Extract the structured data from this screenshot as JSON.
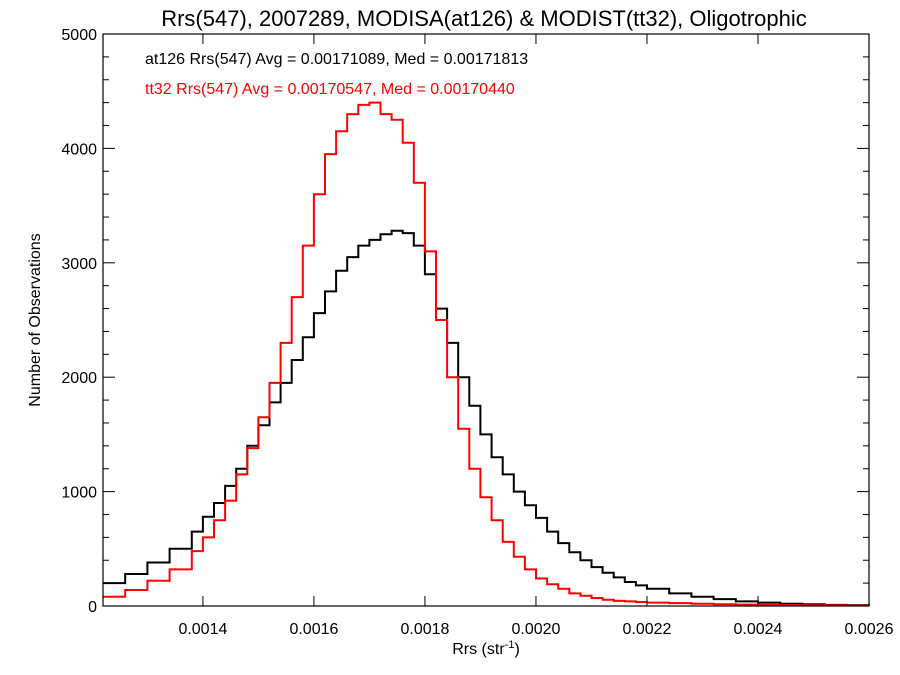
{
  "chart_data": {
    "type": "line",
    "step": true,
    "title": "Rrs(547), 2007289, MODISA(at126) & MODIST(tt32), Oligotrophic",
    "xlabel_main": "Rrs (str",
    "xlabel_sup": "-1",
    "xlabel_close": ")",
    "ylabel": "Number of Observations",
    "xlim": [
      0.00122,
      0.0026
    ],
    "ylim": [
      0,
      5000
    ],
    "xticks": [
      0.0014,
      0.0016,
      0.0018,
      0.002,
      0.0022,
      0.0024,
      0.0026
    ],
    "xtick_labels": [
      "0.0014",
      "0.0016",
      "0.0018",
      "0.0020",
      "0.0022",
      "0.0024",
      "0.0026"
    ],
    "yticks": [
      0,
      1000,
      2000,
      3000,
      4000,
      5000
    ],
    "ytick_labels": [
      "0",
      "1000",
      "2000",
      "3000",
      "4000",
      "5000"
    ],
    "grid": false,
    "annotations": [
      {
        "text": "at126 Rrs(547) Avg = 0.00171089, Med = 0.00171813",
        "color": "#000000"
      },
      {
        "text": "tt32 Rrs(547) Avg = 0.00170547, Med = 0.00170440",
        "color": "#ff0000"
      }
    ],
    "series": [
      {
        "color": "#000000",
        "x": [
          0.00122,
          0.00126,
          0.0013,
          0.00134,
          0.00138,
          0.0014,
          0.00142,
          0.00144,
          0.00146,
          0.00148,
          0.0015,
          0.00152,
          0.00154,
          0.00156,
          0.00158,
          0.0016,
          0.00162,
          0.00164,
          0.00166,
          0.00168,
          0.0017,
          0.00172,
          0.00174,
          0.00176,
          0.00178,
          0.0018,
          0.00182,
          0.00184,
          0.00186,
          0.00188,
          0.0019,
          0.00192,
          0.00194,
          0.00196,
          0.00198,
          0.002,
          0.00202,
          0.00204,
          0.00206,
          0.00208,
          0.0021,
          0.00212,
          0.00214,
          0.00216,
          0.00218,
          0.0022,
          0.00224,
          0.00228,
          0.00232,
          0.00236,
          0.0024,
          0.00244,
          0.00248,
          0.00252,
          0.00256,
          0.0026
        ],
        "y": [
          200,
          280,
          380,
          500,
          650,
          780,
          900,
          1050,
          1200,
          1400,
          1580,
          1780,
          1950,
          2150,
          2350,
          2560,
          2750,
          2930,
          3050,
          3150,
          3200,
          3250,
          3280,
          3260,
          3150,
          2900,
          2600,
          2300,
          2000,
          1750,
          1500,
          1300,
          1150,
          1000,
          880,
          770,
          650,
          550,
          470,
          400,
          340,
          290,
          250,
          210,
          180,
          150,
          110,
          80,
          60,
          40,
          30,
          20,
          15,
          10,
          8,
          5
        ]
      },
      {
        "color": "#ff0000",
        "x": [
          0.00122,
          0.00126,
          0.0013,
          0.00134,
          0.00138,
          0.0014,
          0.00142,
          0.00144,
          0.00146,
          0.00148,
          0.0015,
          0.00152,
          0.00154,
          0.00156,
          0.00158,
          0.0016,
          0.00162,
          0.00164,
          0.00166,
          0.00168,
          0.0017,
          0.00172,
          0.00174,
          0.00176,
          0.00178,
          0.0018,
          0.00182,
          0.00184,
          0.00186,
          0.00188,
          0.0019,
          0.00192,
          0.00194,
          0.00196,
          0.00198,
          0.002,
          0.00202,
          0.00204,
          0.00206,
          0.00208,
          0.0021,
          0.00212,
          0.00214,
          0.00216,
          0.00218,
          0.0022,
          0.00224,
          0.00228,
          0.00232,
          0.00236,
          0.0024,
          0.00244,
          0.00248,
          0.00252,
          0.00256,
          0.0026
        ],
        "y": [
          80,
          140,
          220,
          320,
          480,
          600,
          750,
          920,
          1150,
          1380,
          1650,
          1950,
          2300,
          2700,
          3150,
          3600,
          3950,
          4150,
          4300,
          4380,
          4400,
          4300,
          4250,
          4050,
          3700,
          3100,
          2500,
          2000,
          1550,
          1200,
          950,
          750,
          560,
          430,
          320,
          240,
          190,
          150,
          110,
          90,
          70,
          55,
          45,
          40,
          35,
          30,
          25,
          20,
          15,
          12,
          10,
          8,
          6,
          5,
          4,
          3
        ]
      }
    ]
  }
}
